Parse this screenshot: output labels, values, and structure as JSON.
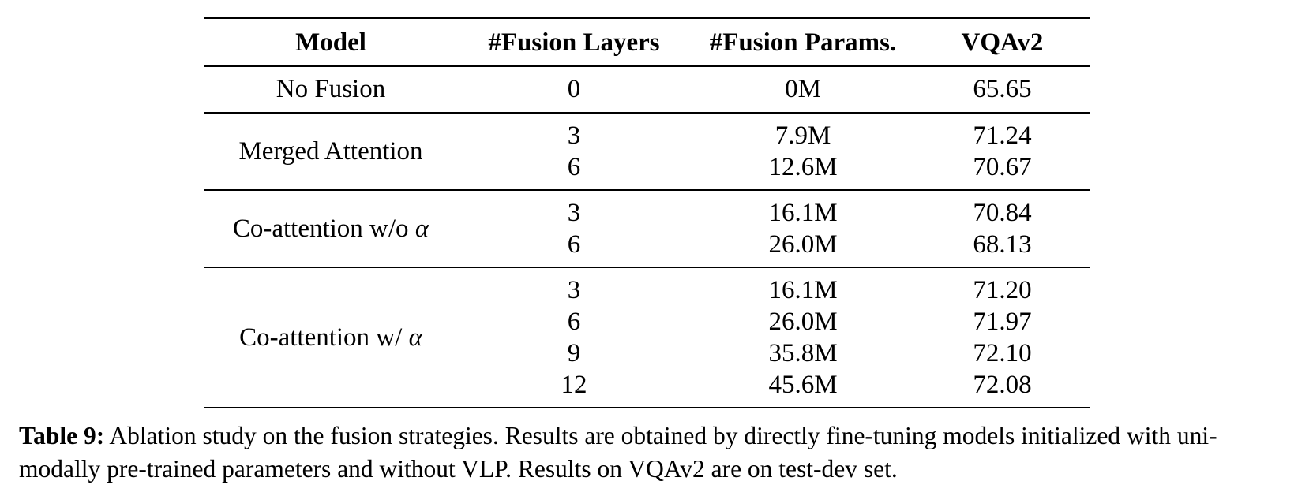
{
  "table": {
    "headers": [
      "Model",
      "#Fusion Layers",
      "#Fusion Params.",
      "VQAv2"
    ],
    "groups": [
      {
        "model": "No Fusion",
        "alpha": "",
        "rows": [
          {
            "layers": "0",
            "params": "0M",
            "vqa": "65.65"
          }
        ]
      },
      {
        "model": "Merged Attention",
        "alpha": "",
        "rows": [
          {
            "layers": "3",
            "params": "7.9M",
            "vqa": "71.24"
          },
          {
            "layers": "6",
            "params": "12.6M",
            "vqa": "70.67"
          }
        ]
      },
      {
        "model": "Co-attention w/o ",
        "alpha": "α",
        "rows": [
          {
            "layers": "3",
            "params": "16.1M",
            "vqa": "70.84"
          },
          {
            "layers": "6",
            "params": "26.0M",
            "vqa": "68.13"
          }
        ]
      },
      {
        "model": "Co-attention w/ ",
        "alpha": "α",
        "rows": [
          {
            "layers": "3",
            "params": "16.1M",
            "vqa": "71.20"
          },
          {
            "layers": "6",
            "params": "26.0M",
            "vqa": "71.97"
          },
          {
            "layers": "9",
            "params": "35.8M",
            "vqa": "72.10"
          },
          {
            "layers": "12",
            "params": "45.6M",
            "vqa": "72.08"
          }
        ]
      }
    ]
  },
  "caption": {
    "label": "Table 9:",
    "text": " Ablation study on the fusion strategies. Results are obtained by directly fine-tuning models initialized with uni-modally pre-trained parameters and without VLP. Results on VQAv2 are on test-dev set."
  }
}
